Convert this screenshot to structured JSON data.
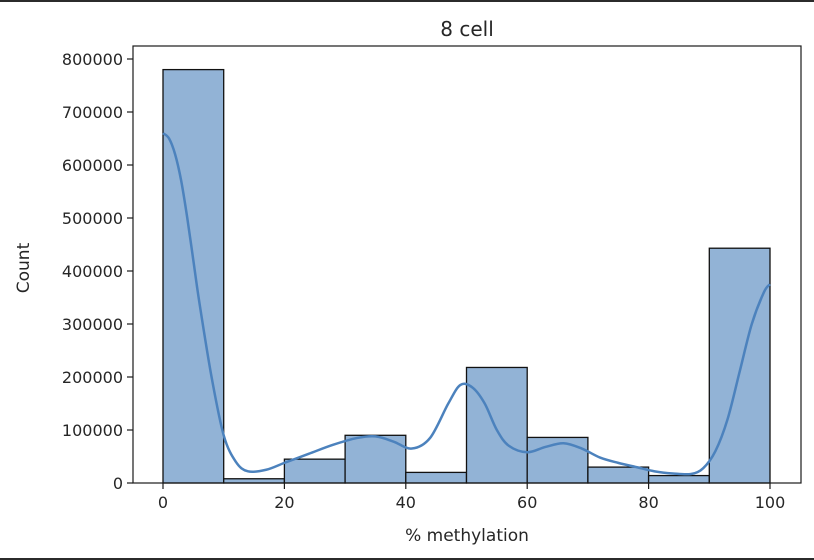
{
  "chart_data": {
    "type": "bar",
    "title": "8 cell",
    "xlabel": "% methylation",
    "ylabel": "Count",
    "xlim": [
      -5,
      105
    ],
    "ylim": [
      0,
      820000
    ],
    "xticks": [
      0,
      20,
      40,
      60,
      80,
      100
    ],
    "xtick_labels": [
      "0",
      "20",
      "40",
      "60",
      "80",
      "100"
    ],
    "yticks": [
      0,
      100000,
      200000,
      300000,
      400000,
      500000,
      600000,
      700000,
      800000
    ],
    "ytick_labels": [
      "0",
      "100000",
      "200000",
      "300000",
      "400000",
      "500000",
      "600000",
      "700000",
      "800000"
    ],
    "bins": [
      {
        "start": 0,
        "end": 10,
        "count": 780000
      },
      {
        "start": 10,
        "end": 20,
        "count": 8000
      },
      {
        "start": 20,
        "end": 30,
        "count": 45000
      },
      {
        "start": 30,
        "end": 40,
        "count": 90000
      },
      {
        "start": 40,
        "end": 50,
        "count": 20000
      },
      {
        "start": 50,
        "end": 60,
        "count": 218000
      },
      {
        "start": 60,
        "end": 70,
        "count": 86000
      },
      {
        "start": 70,
        "end": 80,
        "count": 30000
      },
      {
        "start": 80,
        "end": 90,
        "count": 14000
      },
      {
        "start": 90,
        "end": 100,
        "count": 443000
      }
    ],
    "kde": {
      "x": [
        0,
        1,
        2,
        3,
        4,
        5,
        6,
        8,
        10,
        12,
        14,
        17,
        20,
        24,
        28,
        32,
        35,
        38,
        41,
        44,
        47,
        49,
        51,
        53,
        55,
        57,
        60,
        63,
        66,
        69,
        72,
        75,
        78,
        81,
        84,
        87,
        89,
        91,
        93,
        95,
        97,
        99,
        100
      ],
      "y": [
        660000,
        650000,
        620000,
        570000,
        500000,
        420000,
        340000,
        200000,
        90000,
        40000,
        22000,
        25000,
        38000,
        55000,
        72000,
        85000,
        88000,
        78000,
        65000,
        85000,
        150000,
        185000,
        180000,
        150000,
        100000,
        70000,
        58000,
        68000,
        75000,
        65000,
        48000,
        38000,
        30000,
        22000,
        18000,
        17000,
        28000,
        60000,
        120000,
        210000,
        300000,
        360000,
        375000
      ]
    },
    "grid": false,
    "bar_color": "#92b3d6",
    "bar_edge_color": "#111111",
    "line_color": "#4c82bd"
  }
}
